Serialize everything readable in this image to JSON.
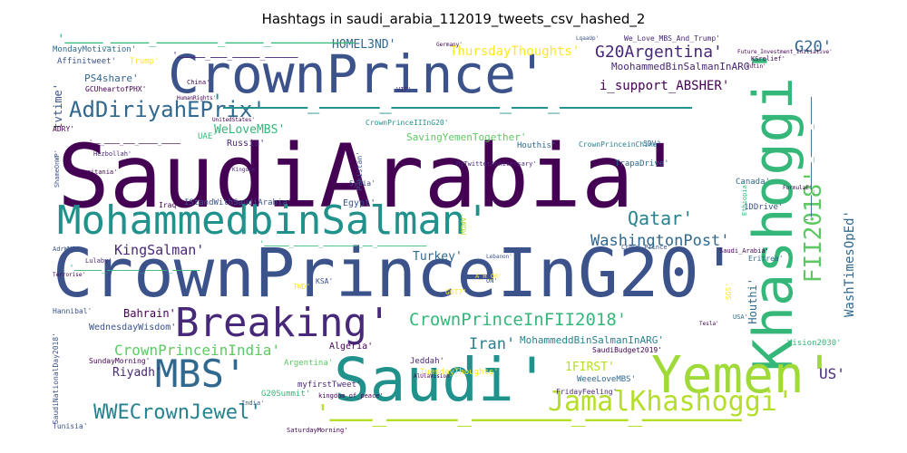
{
  "title": "Hashtags in saudi_arabia_112019_tweets_csv_hashed_2",
  "words": [
    {
      "text": "SaudiArabia'",
      "color": "#440154"
    },
    {
      "text": "CrownPrinceInG20'",
      "color": "#3b528b"
    },
    {
      "text": "CrownPrince'",
      "color": "#3b528b"
    },
    {
      "text": "MohammedbinSalman'",
      "color": "#21918c"
    },
    {
      "text": "Saudi'",
      "color": "#21918c"
    },
    {
      "text": "Khashoggi'",
      "color": "#35b779"
    },
    {
      "text": "Yemen'",
      "color": "#a0da39"
    },
    {
      "text": "Breaking'",
      "color": "#482878"
    },
    {
      "text": "MBS'",
      "color": "#31688e"
    },
    {
      "text": "JamalKhashoggi'",
      "color": "#b5de2b"
    },
    {
      "text": "AdDiriyahEPrix'",
      "color": "#31688e"
    },
    {
      "text": "WWECrownJewel'",
      "color": "#26828e"
    },
    {
      "text": "FII2018'",
      "color": "#5ec962"
    },
    {
      "text": "CrownPrinceInFII2018'",
      "color": "#35b779"
    },
    {
      "text": "G20Argentina'",
      "color": "#482878"
    },
    {
      "text": "WashingtonPost'",
      "color": "#31688e"
    },
    {
      "text": "Qatar'",
      "color": "#26828e"
    },
    {
      "text": "Iran'",
      "color": "#26828e"
    },
    {
      "text": "CrownPrinceinIndia'",
      "color": "#5ec962"
    },
    {
      "text": "KingSalman'",
      "color": "#482878"
    },
    {
      "text": "ThursdayThoughts'",
      "color": "#fde725"
    },
    {
      "text": "i_support_ABSHER'",
      "color": "#440154"
    },
    {
      "text": "MoohammedBinSalmanInARG'",
      "color": "#482878"
    },
    {
      "text": "G20'",
      "color": "#31688e"
    },
    {
      "text": "WeLoveMBS'",
      "color": "#35b779"
    },
    {
      "text": "SavingYemenTogether'",
      "color": "#5ec962"
    },
    {
      "text": "Turkey'",
      "color": "#31688e"
    },
    {
      "text": "MohammeddBinSalmanInARG'",
      "color": "#26828e"
    },
    {
      "text": "1FIRST'",
      "color": "#b5de2b"
    },
    {
      "text": "US'",
      "color": "#482878"
    },
    {
      "text": "WashTimesOpEd'",
      "color": "#31688e"
    },
    {
      "text": "HOMEL3ND'",
      "color": "#31688e"
    },
    {
      "text": "Riyadh'",
      "color": "#482878"
    },
    {
      "text": "Bahrain'",
      "color": "#440154"
    },
    {
      "text": "WednesdayWisdom'",
      "color": "#3b528b"
    },
    {
      "text": "PS4share'",
      "color": "#31688e"
    },
    {
      "text": "tvtime'",
      "color": "#3b528b"
    },
    {
      "text": "Houthi'",
      "color": "#31688e"
    },
    {
      "text": "MondayMotivation'",
      "color": "#31688e"
    },
    {
      "text": "Affinitweet'",
      "color": "#3b528b"
    },
    {
      "text": "CrownPrinceIIInG20'",
      "color": "#21918c"
    },
    {
      "text": "Houthis'",
      "color": "#31688e"
    },
    {
      "text": "CrownPrinceinChina'",
      "color": "#26828e"
    },
    {
      "text": "TrapaDrive'",
      "color": "#31688e"
    },
    {
      "text": "1DDrive'",
      "color": "#3b528b"
    },
    {
      "text": "Canada'",
      "color": "#31688e"
    },
    {
      "text": "Egypt'",
      "color": "#3b528b"
    },
    {
      "text": "IStandWithSaudiArabia'",
      "color": "#3b528b"
    },
    {
      "text": "Algeria'",
      "color": "#440154"
    },
    {
      "text": "Jeddah'",
      "color": "#482878"
    },
    {
      "text": "Argentina'",
      "color": "#5ec962"
    },
    {
      "text": "TuesdayThoughts'",
      "color": "#fde725"
    },
    {
      "text": "SaudiBudget2019'",
      "color": "#440154"
    },
    {
      "text": "SundayMorning'",
      "color": "#440154"
    },
    {
      "text": "myfirstTweet'",
      "color": "#482878"
    },
    {
      "text": "WeeeLoveMBS'",
      "color": "#31688e"
    },
    {
      "text": "FridayFeeling'",
      "color": "#482878"
    },
    {
      "text": "G20Summit'",
      "color": "#35b779"
    },
    {
      "text": "Vision2030'",
      "color": "#35b779"
    },
    {
      "text": "Russia'",
      "color": "#482878"
    },
    {
      "text": "UAE'",
      "color": "#35b779"
    },
    {
      "text": "Trump'",
      "color": "#fde725"
    },
    {
      "text": "GCUheartofPHX'",
      "color": "#440154"
    },
    {
      "text": "ADRY'",
      "color": "#440154"
    },
    {
      "text": "Hannibal'",
      "color": "#3b528b"
    },
    {
      "text": "Tunisia'",
      "color": "#3b528b"
    },
    {
      "text": "KSA'",
      "color": "#3b528b"
    },
    {
      "text": "SaturdayMorning'",
      "color": "#440154"
    },
    {
      "text": "Mauritania'",
      "color": "#440154"
    },
    {
      "text": "Pakistan'",
      "color": "#3b528b"
    },
    {
      "text": "Syria'",
      "color": "#3b528b"
    },
    {
      "text": "Iraq'",
      "color": "#440154"
    },
    {
      "text": "Lulaby'",
      "color": "#482878"
    },
    {
      "text": "AdrWMP'",
      "color": "#3b528b"
    },
    {
      "text": "ShameOnWP'",
      "color": "#3b528b"
    },
    {
      "text": "SaudiNationalDay2018'",
      "color": "#3b528b"
    },
    {
      "text": "We_Love_MBS_And_Trump'",
      "color": "#482878"
    },
    {
      "text": "Eritrea'",
      "color": "#31688e"
    },
    {
      "text": "SDV'",
      "color": "#31688e"
    },
    {
      "text": "Ethiopia'",
      "color": "#35b779"
    },
    {
      "text": "KSrelief'",
      "color": "#440154"
    },
    {
      "text": "Crown_Prince'",
      "color": "#3b528b"
    },
    {
      "text": "Lebanon'",
      "color": "#3b528b"
    },
    {
      "text": "Saudi_Arabia'",
      "color": "#440154"
    },
    {
      "text": "India'",
      "color": "#3b528b"
    },
    {
      "text": "kingdom_of_peace'",
      "color": "#440154"
    },
    {
      "text": "MGWV'",
      "color": "#b5de2b"
    },
    {
      "text": "A_H_OR'",
      "color": "#fde725"
    },
    {
      "text": "TWD'",
      "color": "#fde725"
    },
    {
      "text": "GOT7'",
      "color": "#fde725"
    },
    {
      "text": "USA'",
      "color": "#31688e"
    },
    {
      "text": "UN'",
      "color": "#3b528b"
    },
    {
      "text": "MyTwitterAnniversary'",
      "color": "#482878"
    },
    {
      "text": "Hezbollah'",
      "color": "#482878"
    },
    {
      "text": "Kingdom'",
      "color": "#482878"
    },
    {
      "text": "UnitedStates'",
      "color": "#440154"
    },
    {
      "text": "Germany'",
      "color": "#440154"
    },
    {
      "text": "Putin'",
      "color": "#440154"
    },
    {
      "text": "China'",
      "color": "#440154"
    },
    {
      "text": "Future_Investment_Initiative'",
      "color": "#440154"
    },
    {
      "text": "LqaaUp'",
      "color": "#3b528b"
    },
    {
      "text": "VIP'",
      "color": "#482878"
    },
    {
      "text": "HumanRights'",
      "color": "#440154"
    },
    {
      "text": "FormulaE'",
      "color": "#440154"
    },
    {
      "text": "Terrorise'",
      "color": "#440154"
    },
    {
      "text": "AlUlaVision'",
      "color": "#440154"
    },
    {
      "text": "Tesla'",
      "color": "#440154"
    },
    {
      "text": "SGS'",
      "color": "#fde725"
    },
    {
      "text": "'ـــــــــــ_ـــــ_ــــــــ_ـــــ_ـــــ",
      "color": "#35b779"
    },
    {
      "text": "'ـــــــــــ_ـــ_ـــــــــ_ـــــ_ـــــــ",
      "color": "#21918c"
    },
    {
      "text": "'ــــــــــ_ــ_ـــــــ_ـــــ_ـــــ",
      "color": "#35b779"
    },
    {
      "text": "'ـــــــ_ـــ_ـــــــ_ـــــ_ـــ",
      "color": "#b5de2b"
    },
    {
      "text": "'ـــــ_ــــ_ــــــ_ـــــ",
      "color": "#35b779"
    },
    {
      "text": "'ـــــ_ـــــ_ـــــ_ــــ",
      "color": "#31688e"
    },
    {
      "text": "'ــــــ_ـــــ_ـــ_ـــــ",
      "color": "#482878"
    },
    {
      "text": "'ـــــ_ـــــ_ـــ_ــــ_ــ",
      "color": "#440154"
    }
  ]
}
